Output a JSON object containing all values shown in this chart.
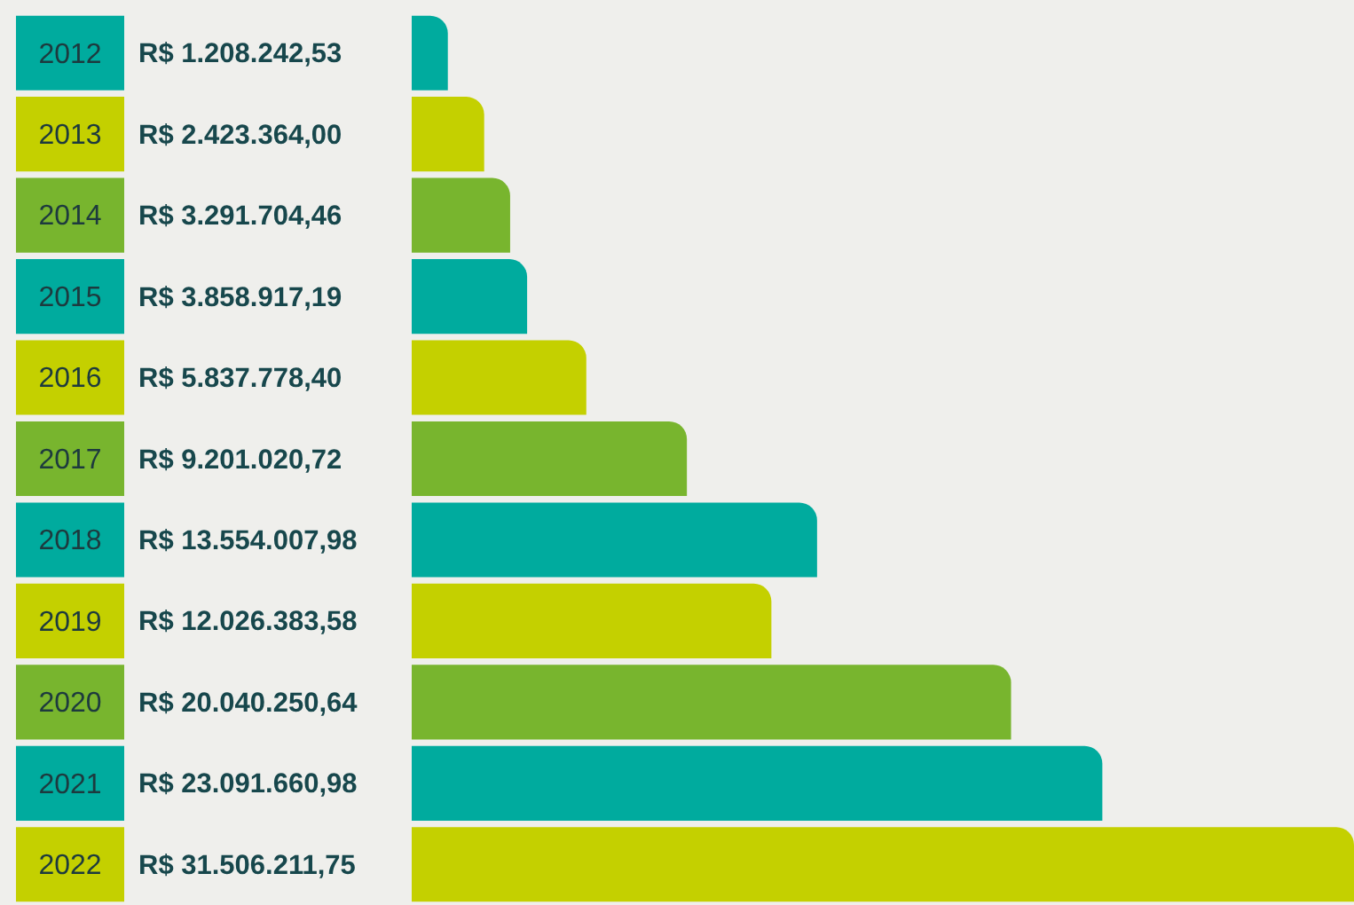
{
  "chart_data": {
    "type": "bar",
    "orientation": "horizontal",
    "categories": [
      "2012",
      "2013",
      "2014",
      "2015",
      "2016",
      "2017",
      "2018",
      "2019",
      "2020",
      "2021",
      "2022"
    ],
    "values": [
      1208242.53,
      2423364.0,
      3291704.46,
      3858917.19,
      5837778.4,
      9201020.72,
      13554007.98,
      12026383.58,
      20040250.64,
      23091660.98,
      31506211.75
    ],
    "value_labels": [
      "R$ 1.208.242,53",
      "R$ 2.423.364,00",
      "R$ 3.291.704,46",
      "R$ 3.858.917,19",
      "R$ 5.837.778,40",
      "R$ 9.201.020,72",
      "R$ 13.554.007,98",
      "R$ 12.026.383,58",
      "R$ 20.040.250,64",
      "R$ 23.091.660,98",
      "R$ 31.506.211,75"
    ],
    "colors": [
      "#00ab9e",
      "#c4d000",
      "#78b52e",
      "#00ab9e",
      "#c4d000",
      "#78b52e",
      "#00ab9e",
      "#c4d000",
      "#78b52e",
      "#00ab9e",
      "#c4d000"
    ],
    "legend": false
  }
}
